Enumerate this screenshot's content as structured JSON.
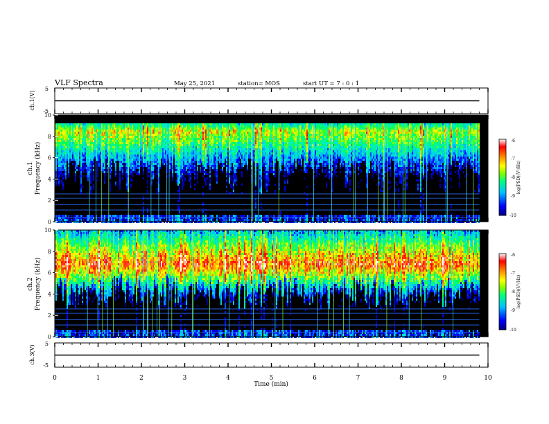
{
  "header": {
    "title": "VLF Spectra",
    "date": "May 25, 2021",
    "station": "station= MOS",
    "start": "start  UT =   7 : 0  : 1"
  },
  "chart_data": [
    {
      "type": "line",
      "title": "",
      "ylabel": "ch.1(V)",
      "ylim": [
        -5,
        5
      ],
      "yticks": [
        "5",
        "-5"
      ],
      "xlim": [
        0,
        10
      ],
      "series": [
        {
          "x": [
            0,
            9.8
          ],
          "values": [
            0,
            0
          ]
        }
      ]
    },
    {
      "type": "heatmap",
      "ylabel_line1": "ch.1",
      "ylabel_line2": "Frequency (kHz)",
      "ylim": [
        0,
        10
      ],
      "yticks": [
        "0",
        "2",
        "4",
        "6",
        "8",
        "10"
      ],
      "xlim": [
        0,
        10
      ],
      "data_end_min": 9.8,
      "band_top_khz": 9.2,
      "intensity_profile": [
        {
          "f": 0,
          "level": -9.5
        },
        {
          "f": 2,
          "level": -9.8
        },
        {
          "f": 4,
          "level": -10
        },
        {
          "f": 6,
          "level": -9.0
        },
        {
          "f": 7.5,
          "level": -8.0
        },
        {
          "f": 8.5,
          "level": -7.5
        },
        {
          "f": 9.2,
          "level": -8.5
        }
      ],
      "colorbar": {
        "label": "log(PSD)(V²/Hz)",
        "min": -10,
        "max": -6,
        "ticks": [
          "-6",
          "-7",
          "-8",
          "-9",
          "-10"
        ]
      }
    },
    {
      "type": "heatmap",
      "ylabel_line1": "ch.2",
      "ylabel_line2": "Frequency (kHz)",
      "ylim": [
        0,
        10
      ],
      "yticks": [
        "0",
        "2",
        "4",
        "6",
        "8",
        "10"
      ],
      "xlim": [
        0,
        10
      ],
      "data_end_min": 9.8,
      "band_top_khz": 10,
      "intensity_profile": [
        {
          "f": 0,
          "level": -9.5
        },
        {
          "f": 2,
          "level": -9.8
        },
        {
          "f": 4,
          "level": -9.2
        },
        {
          "f": 5.5,
          "level": -7.8
        },
        {
          "f": 6.8,
          "level": -6.8
        },
        {
          "f": 8.5,
          "level": -7.8
        },
        {
          "f": 10,
          "level": -9.0
        }
      ],
      "colorbar": {
        "label": "log(PSD)(V²/Hz)",
        "min": -10,
        "max": -6,
        "ticks": [
          "-6",
          "-7",
          "-8",
          "-9",
          "-10"
        ]
      }
    },
    {
      "type": "line",
      "title": "",
      "ylabel": "ch.3(V)",
      "ylim": [
        -5,
        5
      ],
      "yticks": [
        "5",
        "-5"
      ],
      "xlim": [
        0,
        10
      ],
      "xlabel": "Time  (min)",
      "xticks": [
        "0",
        "1",
        "2",
        "3",
        "4",
        "5",
        "6",
        "7",
        "8",
        "9",
        "10"
      ],
      "series": [
        {
          "x": [
            0,
            9.8
          ],
          "values": [
            0,
            0
          ]
        }
      ]
    }
  ],
  "colors": {
    "colormap": [
      "#000080",
      "#0000ff",
      "#00b0ff",
      "#00e0e0",
      "#00ff60",
      "#a0ff00",
      "#ffff00",
      "#ff8000",
      "#ff0000",
      "#ffffff"
    ]
  }
}
